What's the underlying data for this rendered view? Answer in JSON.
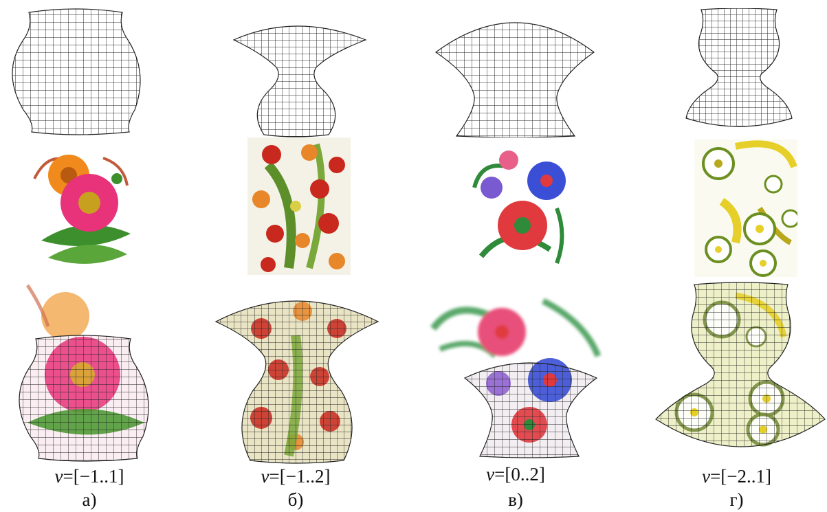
{
  "figure": {
    "columns": [
      {
        "id": "a",
        "range_var": "v",
        "range_value": "=[−1..1]",
        "label": "а)",
        "ornament": "orange-pink-flowers",
        "accent_colors": [
          "#e8327a",
          "#f08a1c",
          "#3d8f2e",
          "#c8c22a"
        ]
      },
      {
        "id": "b",
        "range_var": "v",
        "range_value": "=[−1..2]",
        "label": "б)",
        "ornament": "dense-red-floral",
        "accent_colors": [
          "#c8281e",
          "#e8862a",
          "#5c8f2a",
          "#d9cf45"
        ]
      },
      {
        "id": "v",
        "range_var": "v",
        "range_value": "=[0..2]",
        "label": "в)",
        "ornament": "red-blue-flowers",
        "accent_colors": [
          "#e03a3e",
          "#3a4fd6",
          "#2f8a3a",
          "#e8608a"
        ]
      },
      {
        "id": "g",
        "range_var": "v",
        "range_value": "=[−2..1]",
        "label": "г)",
        "ornament": "yellow-white-flowers",
        "accent_colors": [
          "#e6cf28",
          "#ffffff",
          "#6b8f20",
          "#b9a81c"
        ]
      }
    ]
  }
}
